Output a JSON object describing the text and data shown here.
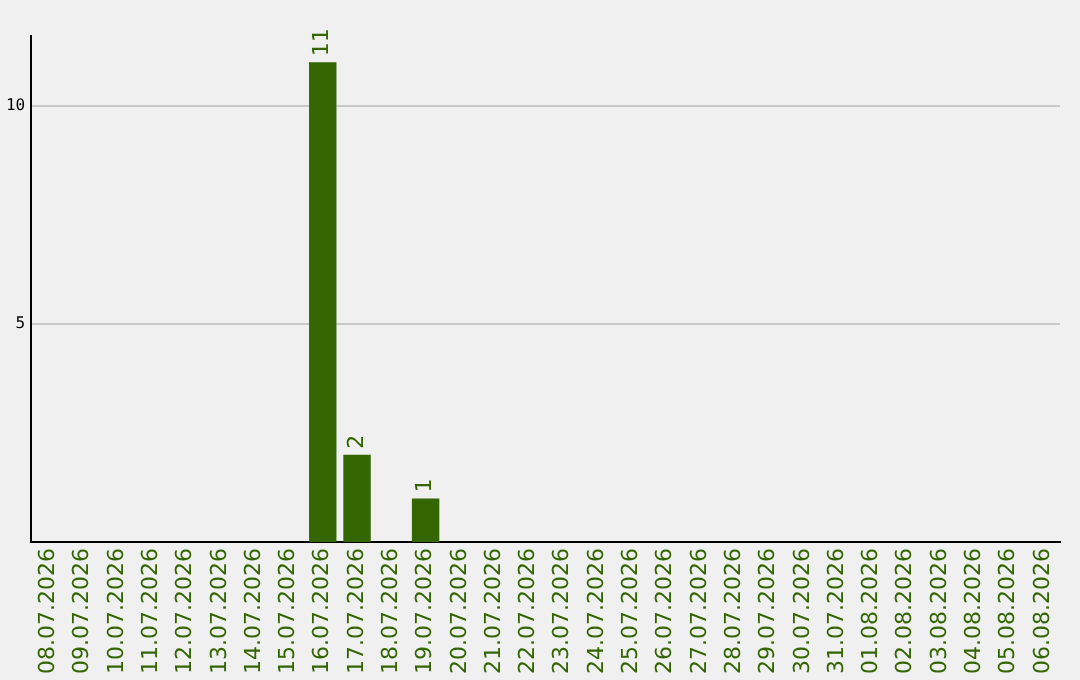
{
  "chart_data": {
    "type": "bar",
    "categories": [
      "08.07.2026",
      "09.07.2026",
      "10.07.2026",
      "11.07.2026",
      "12.07.2026",
      "13.07.2026",
      "14.07.2026",
      "15.07.2026",
      "16.07.2026",
      "17.07.2026",
      "18.07.2026",
      "19.07.2026",
      "20.07.2026",
      "21.07.2026",
      "22.07.2026",
      "23.07.2026",
      "24.07.2026",
      "25.07.2026",
      "26.07.2026",
      "27.07.2026",
      "28.07.2026",
      "29.07.2026",
      "30.07.2026",
      "31.07.2026",
      "01.08.2026",
      "02.08.2026",
      "03.08.2026",
      "04.08.2026",
      "05.08.2026",
      "06.08.2026"
    ],
    "values": [
      0,
      0,
      0,
      0,
      0,
      0,
      0,
      0,
      11,
      2,
      0,
      1,
      0,
      0,
      0,
      0,
      0,
      0,
      0,
      0,
      0,
      0,
      0,
      0,
      0,
      0,
      0,
      0,
      0,
      0
    ],
    "value_labels": [
      null,
      null,
      null,
      null,
      null,
      null,
      null,
      null,
      "11",
      "2",
      null,
      "1",
      null,
      null,
      null,
      null,
      null,
      null,
      null,
      null,
      null,
      null,
      null,
      null,
      null,
      null,
      null,
      null,
      null,
      null
    ],
    "color": "#336600",
    "ylim": [
      0,
      11.6
    ],
    "yticks": [
      5,
      10
    ],
    "grid": "y",
    "legend": false
  }
}
